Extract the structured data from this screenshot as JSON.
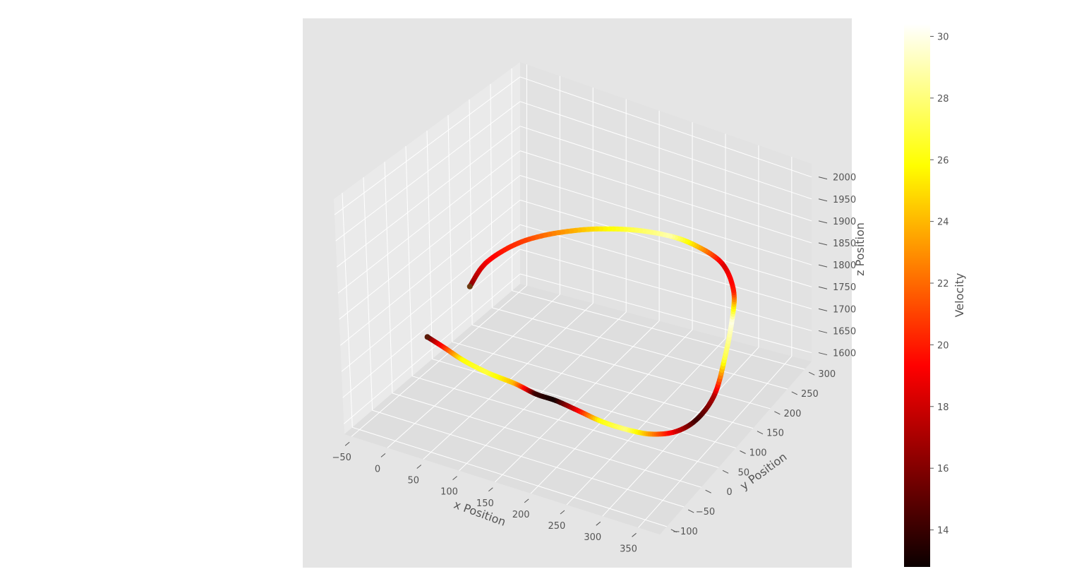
{
  "chart_data": {
    "type": "line",
    "subtype": "3d-trajectory",
    "title": "",
    "xlabel": "x Position",
    "ylabel": "y Position",
    "zlabel": "z Position",
    "xlim": [
      -60,
      380
    ],
    "ylim": [
      -120,
      320
    ],
    "zlim": [
      1580,
      2030
    ],
    "x_ticks": [
      -50,
      0,
      50,
      100,
      150,
      200,
      250,
      300,
      350
    ],
    "y_ticks": [
      -100,
      -50,
      0,
      50,
      100,
      150,
      200,
      250,
      300
    ],
    "z_ticks": [
      1600,
      1650,
      1700,
      1750,
      1800,
      1850,
      1900,
      1950,
      2000
    ],
    "x_tick_labels": [
      "−50",
      "0",
      "50",
      "100",
      "150",
      "200",
      "250",
      "300",
      "350"
    ],
    "y_tick_labels": [
      "−100",
      "−50",
      "0",
      "50",
      "100",
      "150",
      "200",
      "250",
      "300"
    ],
    "z_tick_labels": [
      "1600",
      "1650",
      "1700",
      "1750",
      "1800",
      "1850",
      "1900",
      "1950",
      "2000"
    ],
    "grid": true,
    "colormap": "hot",
    "colorbar": {
      "label": "Velocity",
      "range": [
        12.8,
        30.4
      ],
      "ticks": [
        14,
        16,
        18,
        20,
        22,
        24,
        26,
        28,
        30
      ],
      "tick_labels": [
        "14",
        "16",
        "18",
        "20",
        "22",
        "24",
        "26",
        "28",
        "30"
      ]
    },
    "trajectory": {
      "x": [
        -3,
        25,
        55,
        90,
        125,
        155,
        180,
        210,
        245,
        280,
        310,
        335,
        350,
        355,
        350,
        340,
        320,
        280,
        230,
        180,
        120,
        60,
        15,
        -5,
        -5
      ],
      "y": [
        -5,
        -10,
        -15,
        -15,
        -10,
        -10,
        -5,
        -5,
        -5,
        0,
        10,
        30,
        60,
        100,
        140,
        180,
        220,
        260,
        280,
        290,
        285,
        260,
        210,
        150,
        105
      ],
      "z": [
        1720,
        1715,
        1708,
        1700,
        1692,
        1685,
        1680,
        1675,
        1668,
        1663,
        1660,
        1662,
        1672,
        1695,
        1740,
        1785,
        1805,
        1810,
        1808,
        1800,
        1790,
        1780,
        1775,
        1765,
        1745
      ],
      "velocity": [
        14,
        20,
        26,
        27,
        24,
        14,
        13,
        18,
        26,
        28,
        23,
        18,
        14,
        17,
        27,
        30,
        20,
        18,
        24,
        29,
        27,
        24,
        21,
        19,
        16
      ]
    }
  }
}
